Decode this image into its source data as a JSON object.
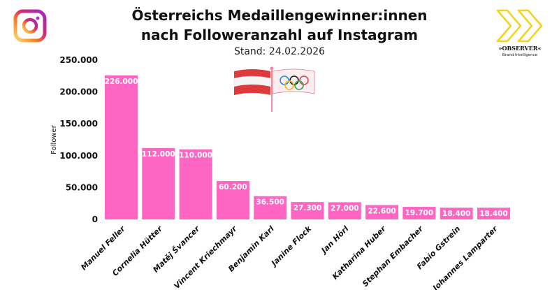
{
  "header": {
    "title_line1": "Österreichs Medaillengewinner:innen",
    "title_line2": "nach Followeranzahl auf Instagram",
    "subtitle": "Stand: 24.02.2026",
    "left_icon": "instagram-icon",
    "right_logo": {
      "name": "observer-logo",
      "text": "»OBSERVER«",
      "tagline": "Brand Intelligence"
    },
    "decoration": [
      "austria-flag-icon",
      "olympic-flag-icon"
    ]
  },
  "chart_data": {
    "type": "bar",
    "title": "Österreichs Medaillengewinner:innen nach Followeranzahl auf Instagram",
    "subtitle": "Stand: 24.02.2026",
    "xlabel": "",
    "ylabel": "Follower",
    "ylim": [
      0,
      250000
    ],
    "yticks": [
      0,
      50000,
      100000,
      150000,
      200000,
      250000
    ],
    "ytick_labels": [
      "0",
      "50.000",
      "100.000",
      "150.000",
      "200.000",
      "250.000"
    ],
    "grid": false,
    "bar_color": "#ff66c4",
    "categories": [
      "Manuel Feller",
      "Cornelia Hütter",
      "Matěj Švancer",
      "Vincent Kriechmayr",
      "Benjamin Karl",
      "Janine Flock",
      "Jan Hörl",
      "Katharina Huber",
      "Stephan Embacher",
      "Fabio Gstrein",
      "Johannes Lamparter"
    ],
    "values": [
      226000,
      112000,
      110000,
      60200,
      36500,
      27300,
      27000,
      22600,
      19700,
      18400,
      18400
    ],
    "data_labels": [
      "226.000",
      "112.000",
      "110.000",
      "60.200",
      "36.500",
      "27.300",
      "27.000",
      "22.600",
      "19.700",
      "18.400",
      "18.400"
    ]
  }
}
